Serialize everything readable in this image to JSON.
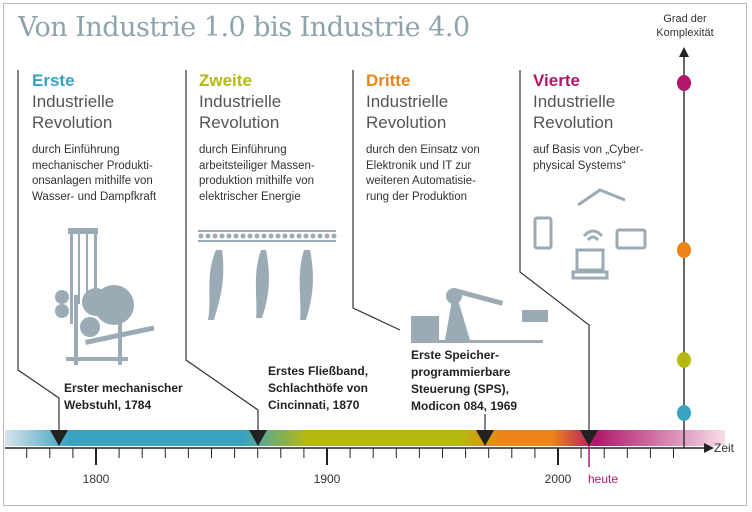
{
  "title": "Von Industrie 1.0 bis Industrie 4.0",
  "complexity_axis": {
    "label_line1": "Grad der",
    "label_line2": "Komplexität"
  },
  "colors": {
    "erste": "#3aa2c1",
    "zweite": "#b5b90f",
    "dritte": "#ec8417",
    "vierte": "#b0176b",
    "icon": "#9aabb5"
  },
  "revolutions": [
    {
      "ordinal": "Erste",
      "line2": "Industrielle",
      "line3": "Revolution",
      "desc": [
        "durch Einführung",
        "mechanischer Produkti-",
        "onsanlagen mithilfe von",
        "Wasser- und Dampfkraft"
      ],
      "event": [
        "Erster mechanischer",
        "Webstuhl, 1784"
      ],
      "year": 1784
    },
    {
      "ordinal": "Zweite",
      "line2": "Industrielle",
      "line3": "Revolution",
      "desc": [
        "durch Einführung",
        "arbeitsteiliger Massen-",
        "produktion mithilfe von",
        "elektrischer Energie"
      ],
      "event": [
        "Erstes Fließband,",
        "Schlachthöfe von",
        "Cincinnati, 1870"
      ],
      "year": 1870
    },
    {
      "ordinal": "Dritte",
      "line2": "Industrielle",
      "line3": "Revolution",
      "desc": [
        "durch den Einsatz von",
        "Elektronik und IT zur",
        "weiteren Automatisie-",
        "rung der Produktion"
      ],
      "event": [
        "Erste Speicher-",
        "programmierbare",
        "Steuerung (SPS),",
        "Modicon 084, 1969"
      ],
      "year": 1969
    },
    {
      "ordinal": "Vierte",
      "line2": "Industrielle",
      "line3": "Revolution",
      "desc": [
        "auf Basis von „Cyber-",
        "physical Systems“"
      ],
      "event": [],
      "year": 2014
    }
  ],
  "timeline": {
    "axis_label": "Zeit",
    "tick_labels": [
      "1800",
      "1900",
      "2000"
    ],
    "today_label": "heute"
  }
}
